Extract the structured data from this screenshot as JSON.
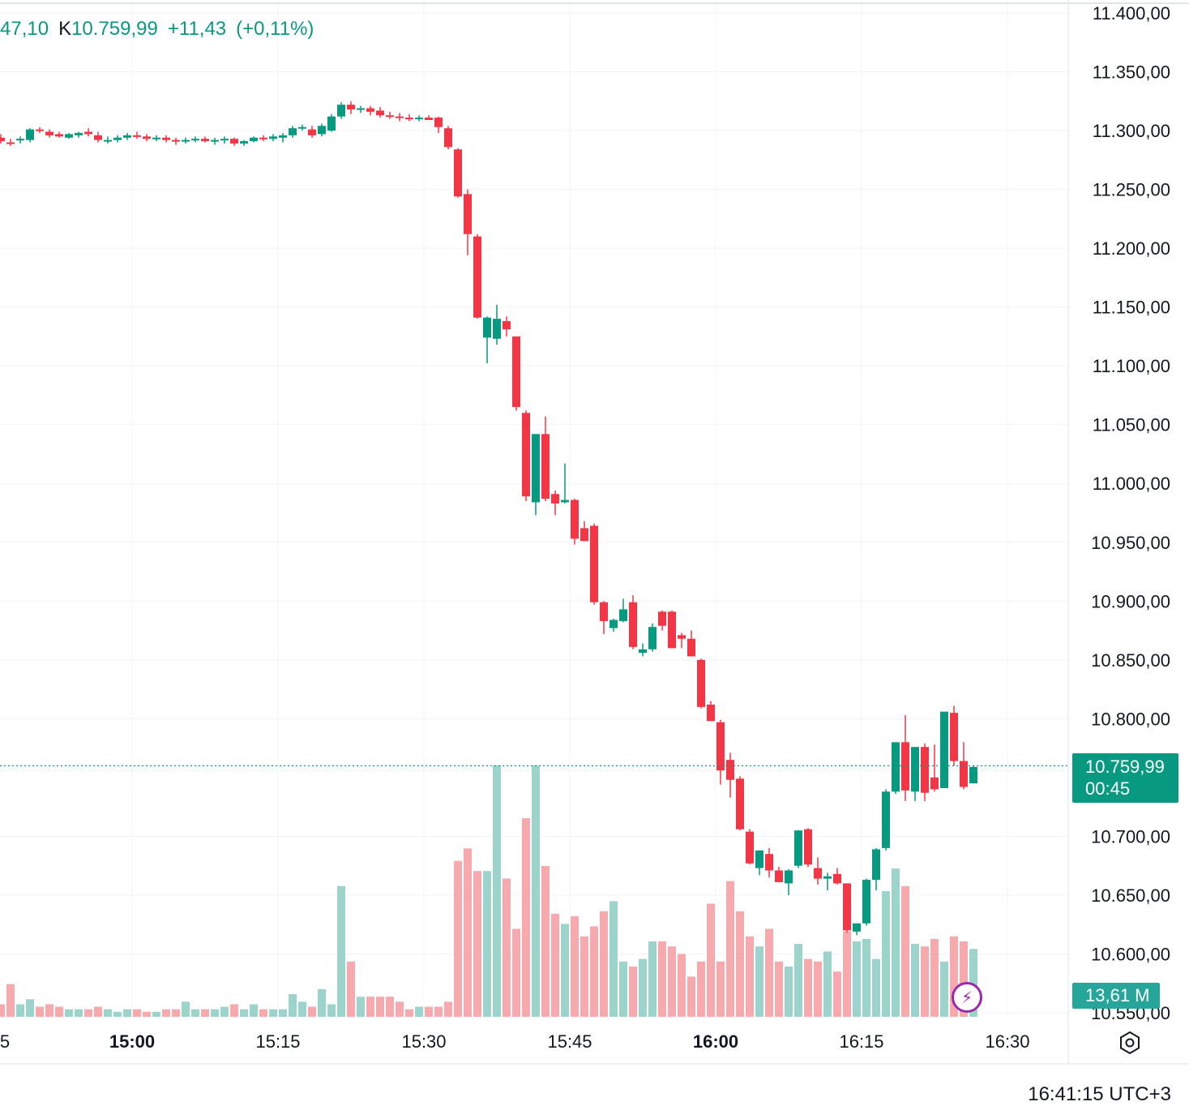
{
  "legend": {
    "prev_value": "47,10",
    "close_label": "K",
    "close_value": "10.759,99",
    "change": "+11,43",
    "change_pct": "(+0,11%)"
  },
  "price_tag": {
    "price": "10.759,99",
    "countdown": "00:45"
  },
  "volume_tag": "13,61 M",
  "clock": "16:41:15 UTC+3",
  "icons": {
    "bolt": "lightning-icon",
    "settings": "settings-icon"
  },
  "colors": {
    "up": "#089981",
    "down": "#f23645",
    "up_vol": "#9cd4cc",
    "down_vol": "#f6aaad"
  },
  "chart_data": {
    "type": "candlestick",
    "y_ticks": [
      "11.400,00",
      "11.350,00",
      "11.300,00",
      "11.250,00",
      "11.200,00",
      "11.150,00",
      "11.100,00",
      "11.050,00",
      "11.000,00",
      "10.950,00",
      "10.900,00",
      "10.850,00",
      "10.800,00",
      "10.700,00",
      "10.650,00",
      "10.600,00",
      "10.550,00"
    ],
    "y_tick_values": [
      11400,
      11350,
      11300,
      11250,
      11200,
      11150,
      11100,
      11050,
      11000,
      10950,
      10900,
      10850,
      10800,
      10700,
      10650,
      10600,
      10550
    ],
    "ylim": [
      10550,
      11410
    ],
    "x_ticks": [
      {
        "label": "5",
        "minutes": 870,
        "bold": false
      },
      {
        "label": "15:00",
        "minutes": 900,
        "bold": true
      },
      {
        "label": "15:15",
        "minutes": 915,
        "bold": false
      },
      {
        "label": "15:30",
        "minutes": 930,
        "bold": false
      },
      {
        "label": "15:45",
        "minutes": 945,
        "bold": false
      },
      {
        "label": "16:00",
        "minutes": 960,
        "bold": true
      },
      {
        "label": "16:15",
        "minutes": 975,
        "bold": false
      },
      {
        "label": "16:30",
        "minutes": 990,
        "bold": false
      }
    ],
    "last_price": 10759.99,
    "start_minute": 886.5,
    "candle_minutes": 1,
    "ohlc": [
      [
        11294,
        11297,
        11289,
        11291
      ],
      [
        11290,
        11293,
        11287,
        11289
      ],
      [
        11292,
        11295,
        11289,
        11293
      ],
      [
        11292,
        11302,
        11290,
        11301
      ],
      [
        11301,
        11303,
        11298,
        11300
      ],
      [
        11299,
        11301,
        11294,
        11296
      ],
      [
        11297,
        11299,
        11294,
        11295
      ],
      [
        11294,
        11298,
        11293,
        11297
      ],
      [
        11296,
        11299,
        11294,
        11298
      ],
      [
        11299,
        11302,
        11295,
        11297
      ],
      [
        11296,
        11299,
        11290,
        11292
      ],
      [
        11292,
        11295,
        11289,
        11292
      ],
      [
        11292,
        11296,
        11290,
        11294
      ],
      [
        11294,
        11298,
        11292,
        11296
      ],
      [
        11296,
        11299,
        11293,
        11295
      ],
      [
        11295,
        11297,
        11291,
        11293
      ],
      [
        11293,
        11296,
        11291,
        11294
      ],
      [
        11294,
        11296,
        11290,
        11292
      ],
      [
        11292,
        11294,
        11288,
        11291
      ],
      [
        11291,
        11294,
        11289,
        11292
      ],
      [
        11292,
        11295,
        11290,
        11293
      ],
      [
        11293,
        11295,
        11290,
        11291
      ],
      [
        11291,
        11294,
        11288,
        11292
      ],
      [
        11292,
        11295,
        11289,
        11293
      ],
      [
        11293,
        11294,
        11287,
        11289
      ],
      [
        11289,
        11292,
        11287,
        11291
      ],
      [
        11291,
        11295,
        11290,
        11294
      ],
      [
        11294,
        11296,
        11291,
        11293
      ],
      [
        11293,
        11297,
        11291,
        11295
      ],
      [
        11294,
        11298,
        11290,
        11296
      ],
      [
        11296,
        11304,
        11294,
        11302
      ],
      [
        11302,
        11305,
        11300,
        11303
      ],
      [
        11301,
        11304,
        11294,
        11296
      ],
      [
        11297,
        11306,
        11295,
        11304
      ],
      [
        11300,
        11314,
        11299,
        11312
      ],
      [
        11312,
        11324,
        11310,
        11322
      ],
      [
        11322,
        11325,
        11314,
        11318
      ],
      [
        11318,
        11321,
        11315,
        11319
      ],
      [
        11319,
        11321,
        11313,
        11316
      ],
      [
        11317,
        11320,
        11311,
        11313
      ],
      [
        11313,
        11316,
        11310,
        11312
      ],
      [
        11312,
        11315,
        11308,
        11311
      ],
      [
        11311,
        11314,
        11308,
        11310
      ],
      [
        11310,
        11313,
        11308,
        11311
      ],
      [
        11311,
        11313,
        11309,
        11309
      ],
      [
        11311,
        11312,
        11298,
        11303
      ],
      [
        11302,
        11304,
        11284,
        11286
      ],
      [
        11284,
        11285,
        11243,
        11244
      ],
      [
        11246,
        11250,
        11194,
        11212
      ],
      [
        11210,
        11212,
        11140,
        11141
      ],
      [
        11124,
        11142,
        11102,
        11141
      ],
      [
        11123,
        11152,
        11118,
        11140
      ],
      [
        11138,
        11142,
        11125,
        11131
      ],
      [
        11125,
        11125,
        11062,
        11065
      ],
      [
        11060,
        11062,
        10985,
        10989
      ],
      [
        10984,
        11042,
        10973,
        11042
      ],
      [
        11042,
        11057,
        10985,
        10987
      ],
      [
        10991,
        10994,
        10973,
        10983
      ],
      [
        10984,
        11017,
        10983,
        10986
      ],
      [
        10986,
        10987,
        10948,
        10953
      ],
      [
        10962,
        10968,
        10951,
        10951
      ],
      [
        10964,
        10966,
        10897,
        10899
      ],
      [
        10899,
        10900,
        10872,
        10883
      ],
      [
        10877,
        10885,
        10874,
        10884
      ],
      [
        10883,
        10902,
        10882,
        10893
      ],
      [
        10899,
        10905,
        10859,
        10861
      ],
      [
        10856,
        10864,
        10853,
        10859
      ],
      [
        10859,
        10881,
        10857,
        10878
      ],
      [
        10891,
        10892,
        10875,
        10879
      ],
      [
        10891,
        10892,
        10860,
        10860
      ],
      [
        10871,
        10873,
        10860,
        10868
      ],
      [
        10868,
        10875,
        10854,
        10853
      ],
      [
        10850,
        10851,
        10809,
        10810
      ],
      [
        10812,
        10815,
        10798,
        10798
      ],
      [
        10797,
        10799,
        10744,
        10756
      ],
      [
        10765,
        10771,
        10733,
        10748
      ],
      [
        10749,
        10751,
        10705,
        10706
      ],
      [
        10704,
        10706,
        10676,
        10677
      ],
      [
        10673,
        10688,
        10667,
        10688
      ],
      [
        10685,
        10690,
        10665,
        10671
      ],
      [
        10671,
        10674,
        10663,
        10661
      ],
      [
        10660,
        10672,
        10650,
        10671
      ],
      [
        10675,
        10705,
        10673,
        10705
      ],
      [
        10706,
        10707,
        10674,
        10676
      ],
      [
        10673,
        10682,
        10659,
        10664
      ],
      [
        10664,
        10669,
        10654,
        10666
      ],
      [
        10668,
        10673,
        10659,
        10660
      ],
      [
        10660,
        10660,
        10618,
        10620
      ],
      [
        10619,
        10626,
        10616,
        10626
      ],
      [
        10626,
        10664,
        10624,
        10663
      ],
      [
        10663,
        10690,
        10654,
        10689
      ],
      [
        10690,
        10740,
        10688,
        10738
      ],
      [
        10738,
        10780,
        10736,
        10780
      ],
      [
        10780,
        10803,
        10730,
        10739
      ],
      [
        10738,
        10775,
        10730,
        10776
      ],
      [
        10776,
        10779,
        10730,
        10737
      ],
      [
        10750,
        10778,
        10738,
        10740
      ],
      [
        10741,
        10806,
        10742,
        10806
      ],
      [
        10805,
        10811,
        10760,
        10764
      ],
      [
        10764,
        10780,
        10740,
        10742
      ],
      [
        10745,
        10760,
        10746,
        10759
      ]
    ],
    "volume_rel": [
      0.05,
      0.13,
      0.05,
      0.07,
      0.04,
      0.05,
      0.04,
      0.03,
      0.03,
      0.03,
      0.04,
      0.03,
      0.02,
      0.03,
      0.03,
      0.02,
      0.02,
      0.03,
      0.03,
      0.06,
      0.03,
      0.03,
      0.03,
      0.04,
      0.05,
      0.03,
      0.05,
      0.03,
      0.03,
      0.03,
      0.09,
      0.06,
      0.04,
      0.11,
      0.05,
      0.52,
      0.22,
      0.08,
      0.08,
      0.08,
      0.08,
      0.06,
      0.03,
      0.04,
      0.04,
      0.04,
      0.06,
      0.62,
      0.67,
      0.58,
      0.58,
      1.0,
      0.55,
      0.35,
      0.79,
      1.0,
      0.6,
      0.41,
      0.37,
      0.4,
      0.32,
      0.36,
      0.42,
      0.46,
      0.22,
      0.2,
      0.23,
      0.3,
      0.3,
      0.28,
      0.25,
      0.16,
      0.22,
      0.45,
      0.22,
      0.54,
      0.42,
      0.32,
      0.28,
      0.35,
      0.22,
      0.2,
      0.29,
      0.23,
      0.22,
      0.26,
      0.18,
      0.34,
      0.3,
      0.31,
      0.23,
      0.5,
      0.59,
      0.52,
      0.29,
      0.28,
      0.31,
      0.22,
      0.32,
      0.3,
      0.27
    ]
  }
}
